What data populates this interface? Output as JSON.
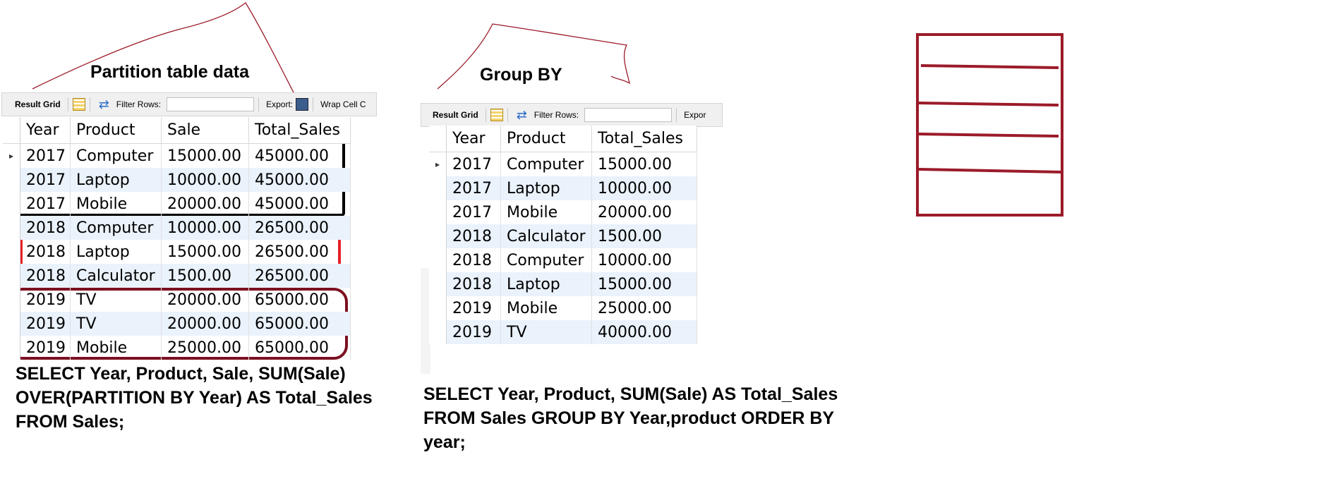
{
  "left_panel": {
    "heading": "Partition table data",
    "toolbar": {
      "result_grid": "Result Grid",
      "filter_rows": "Filter Rows:",
      "export": "Export:",
      "wrap_cell": "Wrap Cell C"
    },
    "columns": [
      "Year",
      "Product",
      "Sale",
      "Total_Sales"
    ],
    "rows": [
      {
        "year": "2017",
        "product": "Computer",
        "sale": "15000.00",
        "total": "45000.00"
      },
      {
        "year": "2017",
        "product": "Laptop",
        "sale": "10000.00",
        "total": "45000.00"
      },
      {
        "year": "2017",
        "product": "Mobile",
        "sale": "20000.00",
        "total": "45000.00"
      },
      {
        "year": "2018",
        "product": "Computer",
        "sale": "10000.00",
        "total": "26500.00"
      },
      {
        "year": "2018",
        "product": "Laptop",
        "sale": "15000.00",
        "total": "26500.00"
      },
      {
        "year": "2018",
        "product": "Calculator",
        "sale": "1500.00",
        "total": "26500.00"
      },
      {
        "year": "2019",
        "product": "TV",
        "sale": "20000.00",
        "total": "65000.00"
      },
      {
        "year": "2019",
        "product": "TV",
        "sale": "20000.00",
        "total": "65000.00"
      },
      {
        "year": "2019",
        "product": "Mobile",
        "sale": "25000.00",
        "total": "65000.00"
      }
    ],
    "query_lines": [
      "SELECT Year, Product, Sale, SUM(Sale)",
      "OVER(PARTITION BY Year) AS Total_Sales",
      "FROM Sales;"
    ]
  },
  "right_panel": {
    "heading": "Group BY",
    "toolbar": {
      "result_grid": "Result Grid",
      "filter_rows": "Filter Rows:",
      "export": "Expor"
    },
    "columns": [
      "Year",
      "Product",
      "Total_Sales"
    ],
    "rows": [
      {
        "year": "2017",
        "product": "Computer",
        "total": "15000.00"
      },
      {
        "year": "2017",
        "product": "Laptop",
        "total": "10000.00"
      },
      {
        "year": "2017",
        "product": "Mobile",
        "total": "20000.00"
      },
      {
        "year": "2018",
        "product": "Calculator",
        "total": "1500.00"
      },
      {
        "year": "2018",
        "product": "Computer",
        "total": "10000.00"
      },
      {
        "year": "2018",
        "product": "Laptop",
        "total": "15000.00"
      },
      {
        "year": "2019",
        "product": "Mobile",
        "total": "25000.00"
      },
      {
        "year": "2019",
        "product": "TV",
        "total": "40000.00"
      }
    ],
    "query_lines": [
      "SELECT Year, Product, SUM(Sale) AS Total_Sales",
      "FROM Sales GROUP BY Year,product ORDER BY",
      "year;"
    ]
  },
  "colors": {
    "partition_2017": "#000000",
    "partition_2018": "#e8202a",
    "partition_2019": "#7b1020",
    "annotation": "#9b1b2a",
    "row_alt": "#eaf2fc"
  }
}
